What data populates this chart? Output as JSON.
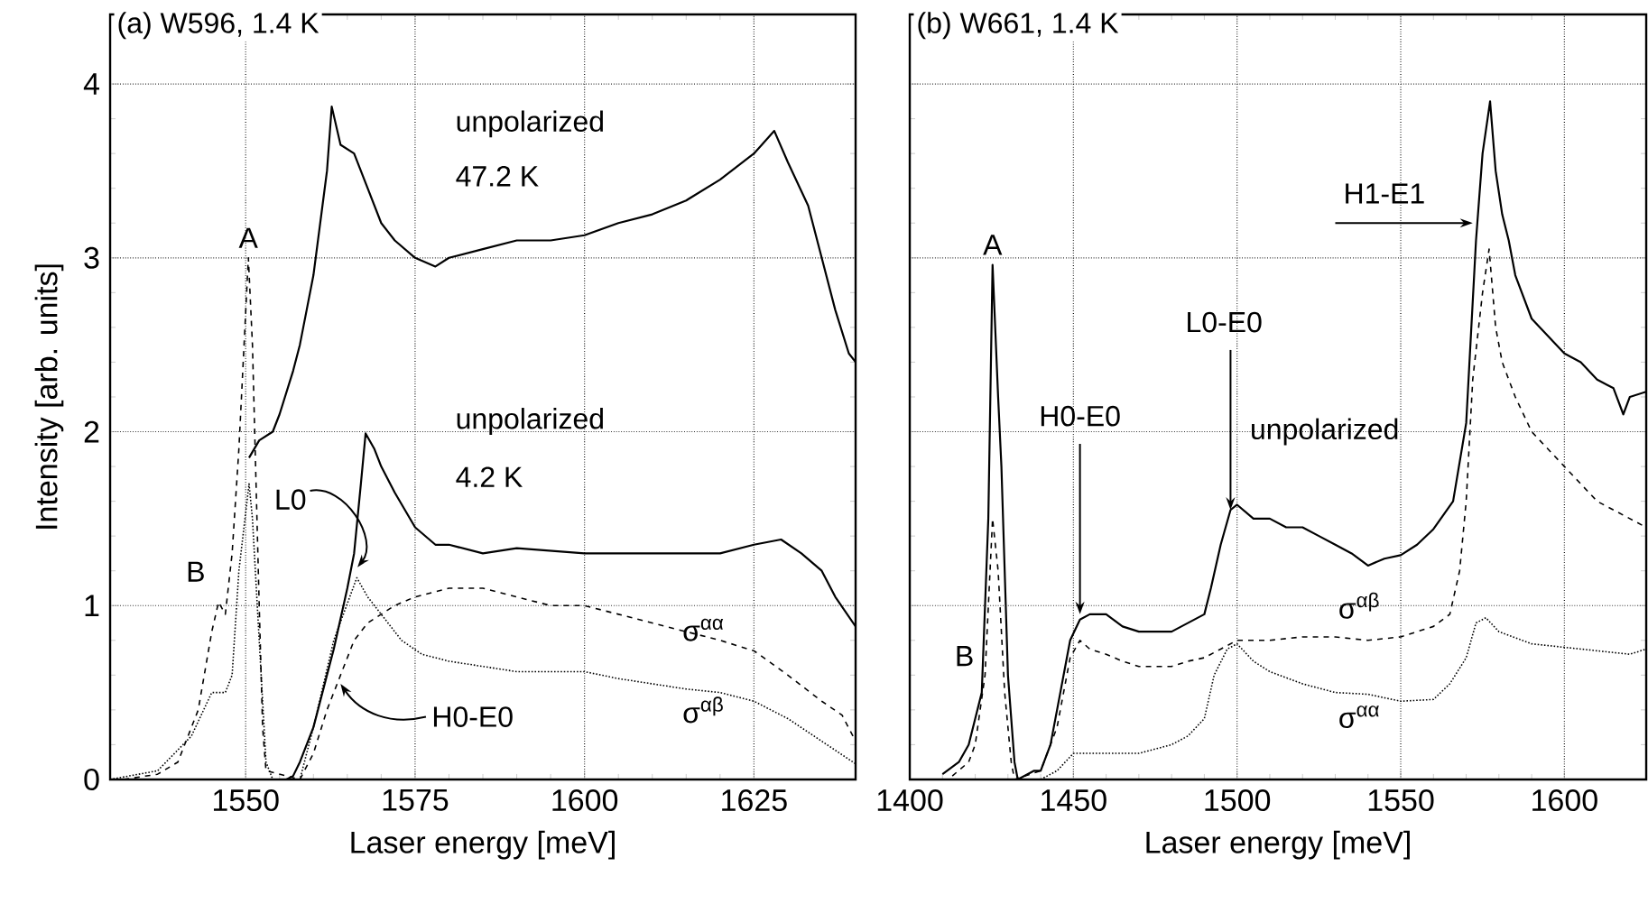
{
  "chart_data": [
    {
      "type": "line",
      "title": "(a) W596, 1.4 K",
      "xlabel": "Laser energy  [meV]",
      "ylabel": "Intensity [arb. units]",
      "xlim": [
        1530,
        1640
      ],
      "ylim": [
        0,
        4.4
      ],
      "xticks": [
        1550,
        1575,
        1600,
        1625
      ],
      "yticks": [
        0,
        1,
        2,
        3,
        4
      ],
      "grid": true,
      "series": [
        {
          "color": "#000000",
          "line_style": "solid",
          "x": [
            1550.5,
            1552,
            1554,
            1555,
            1557,
            1558,
            1559,
            1560,
            1561,
            1562,
            1562.7,
            1564,
            1566,
            1568,
            1570,
            1572,
            1575,
            1578,
            1580,
            1585,
            1590,
            1595,
            1600,
            1605,
            1610,
            1615,
            1620,
            1625,
            1628,
            1630,
            1633,
            1635,
            1637,
            1639,
            1640
          ],
          "values": [
            1.85,
            1.95,
            2.0,
            2.1,
            2.35,
            2.5,
            2.7,
            2.9,
            3.2,
            3.5,
            3.87,
            3.65,
            3.6,
            3.4,
            3.2,
            3.1,
            3.0,
            2.95,
            3.0,
            3.05,
            3.1,
            3.1,
            3.13,
            3.2,
            3.25,
            3.33,
            3.45,
            3.6,
            3.73,
            3.55,
            3.3,
            3.0,
            2.7,
            2.45,
            2.4
          ]
        },
        {
          "color": "#000000",
          "line_style": "solid",
          "x": [
            1556,
            1557,
            1558,
            1560,
            1562,
            1563,
            1565,
            1566,
            1567,
            1567.7,
            1569,
            1570,
            1572,
            1575,
            1578,
            1580,
            1585,
            1590,
            1600,
            1610,
            1620,
            1625,
            1629,
            1632,
            1635,
            1637,
            1640
          ],
          "values": [
            0,
            0.02,
            0.1,
            0.3,
            0.6,
            0.75,
            1.1,
            1.3,
            1.7,
            1.99,
            1.9,
            1.8,
            1.65,
            1.45,
            1.35,
            1.35,
            1.3,
            1.33,
            1.3,
            1.3,
            1.3,
            1.35,
            1.38,
            1.3,
            1.2,
            1.05,
            0.88
          ]
        },
        {
          "color": "#000000",
          "line_style": "dashed",
          "x": [
            1532,
            1537,
            1540,
            1543,
            1545,
            1546,
            1547,
            1548,
            1549,
            1550.4,
            1551,
            1552,
            1552.5,
            1553,
            1558,
            1560,
            1562,
            1564,
            1566,
            1568,
            1572,
            1575,
            1580,
            1585,
            1590,
            1595,
            1600,
            1605,
            1610,
            1615,
            1620,
            1625,
            1630,
            1635,
            1638,
            1640
          ],
          "values": [
            0,
            0.03,
            0.1,
            0.4,
            0.85,
            1.02,
            0.95,
            1.3,
            1.9,
            3.0,
            2.5,
            1.0,
            0.3,
            0.05,
            0,
            0.15,
            0.4,
            0.6,
            0.8,
            0.9,
            1.0,
            1.05,
            1.1,
            1.1,
            1.05,
            1.0,
            1.0,
            0.95,
            0.9,
            0.85,
            0.8,
            0.74,
            0.6,
            0.45,
            0.37,
            0.22
          ]
        },
        {
          "color": "#000000",
          "line_style": "dotted",
          "x": [
            1530,
            1537,
            1542,
            1545,
            1547,
            1548,
            1549,
            1550.5,
            1551,
            1552,
            1553,
            1554,
            1558,
            1560,
            1563,
            1566.4,
            1568,
            1570,
            1573,
            1576,
            1580,
            1585,
            1590,
            1595,
            1600,
            1605,
            1610,
            1615,
            1620,
            1625,
            1630,
            1635,
            1640
          ],
          "values": [
            0,
            0.05,
            0.25,
            0.5,
            0.5,
            0.6,
            1.2,
            1.7,
            1.5,
            0.8,
            0.1,
            0,
            0,
            0.3,
            0.8,
            1.16,
            1.05,
            0.95,
            0.8,
            0.72,
            0.68,
            0.65,
            0.62,
            0.62,
            0.62,
            0.58,
            0.55,
            0.52,
            0.5,
            0.45,
            0.35,
            0.22,
            0.09
          ]
        }
      ],
      "annotations": [
        {
          "text": "A",
          "x": 1550.4,
          "y": 3.0
        },
        {
          "text": "B",
          "x": 1545,
          "y": 1.02
        },
        "unpolarized",
        "47.2 K",
        "unpolarized",
        "4.2 K",
        {
          "text": "L0",
          "x": 1566.5,
          "y": 1.22
        },
        {
          "text": "H0-E0",
          "x": 1564,
          "y": 0.55
        },
        "σ$^{αα}$",
        "σ$^{αβ}$"
      ]
    },
    {
      "type": "line",
      "title": "(b) W661, 1.4 K",
      "xlabel": "Laser energy  [meV]",
      "xlim": [
        1400,
        1625
      ],
      "ylim": [
        0,
        4.4
      ],
      "xticks": [
        1400,
        1450,
        1500,
        1550,
        1600
      ],
      "yticks": [
        0,
        1,
        2,
        3,
        4
      ],
      "grid": true,
      "tick_labels": "x",
      "series": [
        {
          "color": "#000000",
          "line_style": "solid",
          "x": [
            1410,
            1415,
            1418,
            1420,
            1422,
            1424,
            1425.3,
            1427,
            1428,
            1430,
            1432,
            1433,
            1438,
            1440,
            1443,
            1446,
            1449,
            1452,
            1455,
            1460,
            1465,
            1470,
            1475,
            1480,
            1485,
            1490,
            1492,
            1495,
            1498,
            1500,
            1505,
            1510,
            1515,
            1520,
            1525,
            1530,
            1535,
            1540,
            1545,
            1550,
            1555,
            1560,
            1566,
            1570,
            1573,
            1575,
            1577.3,
            1579,
            1581,
            1583,
            1585,
            1590,
            1595,
            1600,
            1605,
            1610,
            1615,
            1618,
            1620,
            1625
          ],
          "values": [
            0.03,
            0.1,
            0.2,
            0.35,
            0.5,
            1.5,
            2.96,
            2.2,
            1.8,
            0.6,
            0.1,
            0,
            0.05,
            0.05,
            0.2,
            0.5,
            0.8,
            0.92,
            0.95,
            0.95,
            0.88,
            0.85,
            0.85,
            0.85,
            0.9,
            0.95,
            1.1,
            1.35,
            1.55,
            1.58,
            1.5,
            1.5,
            1.45,
            1.45,
            1.4,
            1.35,
            1.3,
            1.23,
            1.27,
            1.29,
            1.35,
            1.44,
            1.6,
            2.05,
            3.1,
            3.6,
            3.9,
            3.5,
            3.25,
            3.1,
            2.9,
            2.65,
            2.55,
            2.45,
            2.4,
            2.3,
            2.25,
            2.1,
            2.2,
            2.23
          ]
        },
        {
          "color": "#000000",
          "line_style": "dashed",
          "x": [
            1413,
            1418,
            1420,
            1423,
            1425.3,
            1427,
            1429,
            1431,
            1432,
            1440,
            1445,
            1449,
            1452,
            1455,
            1460,
            1465,
            1470,
            1475,
            1480,
            1485,
            1490,
            1495,
            1500,
            1510,
            1520,
            1530,
            1540,
            1550,
            1560,
            1565,
            1568,
            1570,
            1572,
            1575,
            1577,
            1579,
            1581,
            1585,
            1590,
            1595,
            1600,
            1605,
            1610,
            1615,
            1620,
            1625
          ],
          "values": [
            0.02,
            0.1,
            0.2,
            0.6,
            1.5,
            1.2,
            0.5,
            0.1,
            0,
            0.05,
            0.3,
            0.7,
            0.8,
            0.75,
            0.72,
            0.68,
            0.65,
            0.65,
            0.65,
            0.68,
            0.7,
            0.75,
            0.8,
            0.8,
            0.82,
            0.82,
            0.8,
            0.82,
            0.88,
            0.95,
            1.2,
            1.6,
            2.3,
            2.8,
            3.05,
            2.6,
            2.4,
            2.2,
            2.0,
            1.9,
            1.8,
            1.7,
            1.6,
            1.55,
            1.5,
            1.45
          ]
        },
        {
          "color": "#000000",
          "line_style": "dotted",
          "x": [
            1440,
            1445,
            1450,
            1460,
            1470,
            1480,
            1485,
            1490,
            1493,
            1497,
            1500,
            1505,
            1510,
            1520,
            1530,
            1540,
            1550,
            1560,
            1565,
            1570,
            1573,
            1576,
            1580,
            1590,
            1600,
            1610,
            1620,
            1625
          ],
          "values": [
            0,
            0.05,
            0.15,
            0.15,
            0.15,
            0.2,
            0.25,
            0.35,
            0.6,
            0.75,
            0.78,
            0.68,
            0.62,
            0.55,
            0.5,
            0.49,
            0.45,
            0.46,
            0.55,
            0.7,
            0.9,
            0.93,
            0.85,
            0.78,
            0.76,
            0.74,
            0.72,
            0.75
          ]
        }
      ],
      "annotations": [
        {
          "text": "A",
          "x": 1425.3,
          "y": 2.96
        },
        "B",
        {
          "text": "H0-E0",
          "x": 1452,
          "y": 0.95
        },
        {
          "text": "L0-E0",
          "x": 1498,
          "y": 1.55
        },
        "unpolarized",
        {
          "text": "H1-E1",
          "x": 1572,
          "y": 3.2
        },
        "σ$^{αβ}$",
        "σ$^{αα}$"
      ]
    }
  ]
}
